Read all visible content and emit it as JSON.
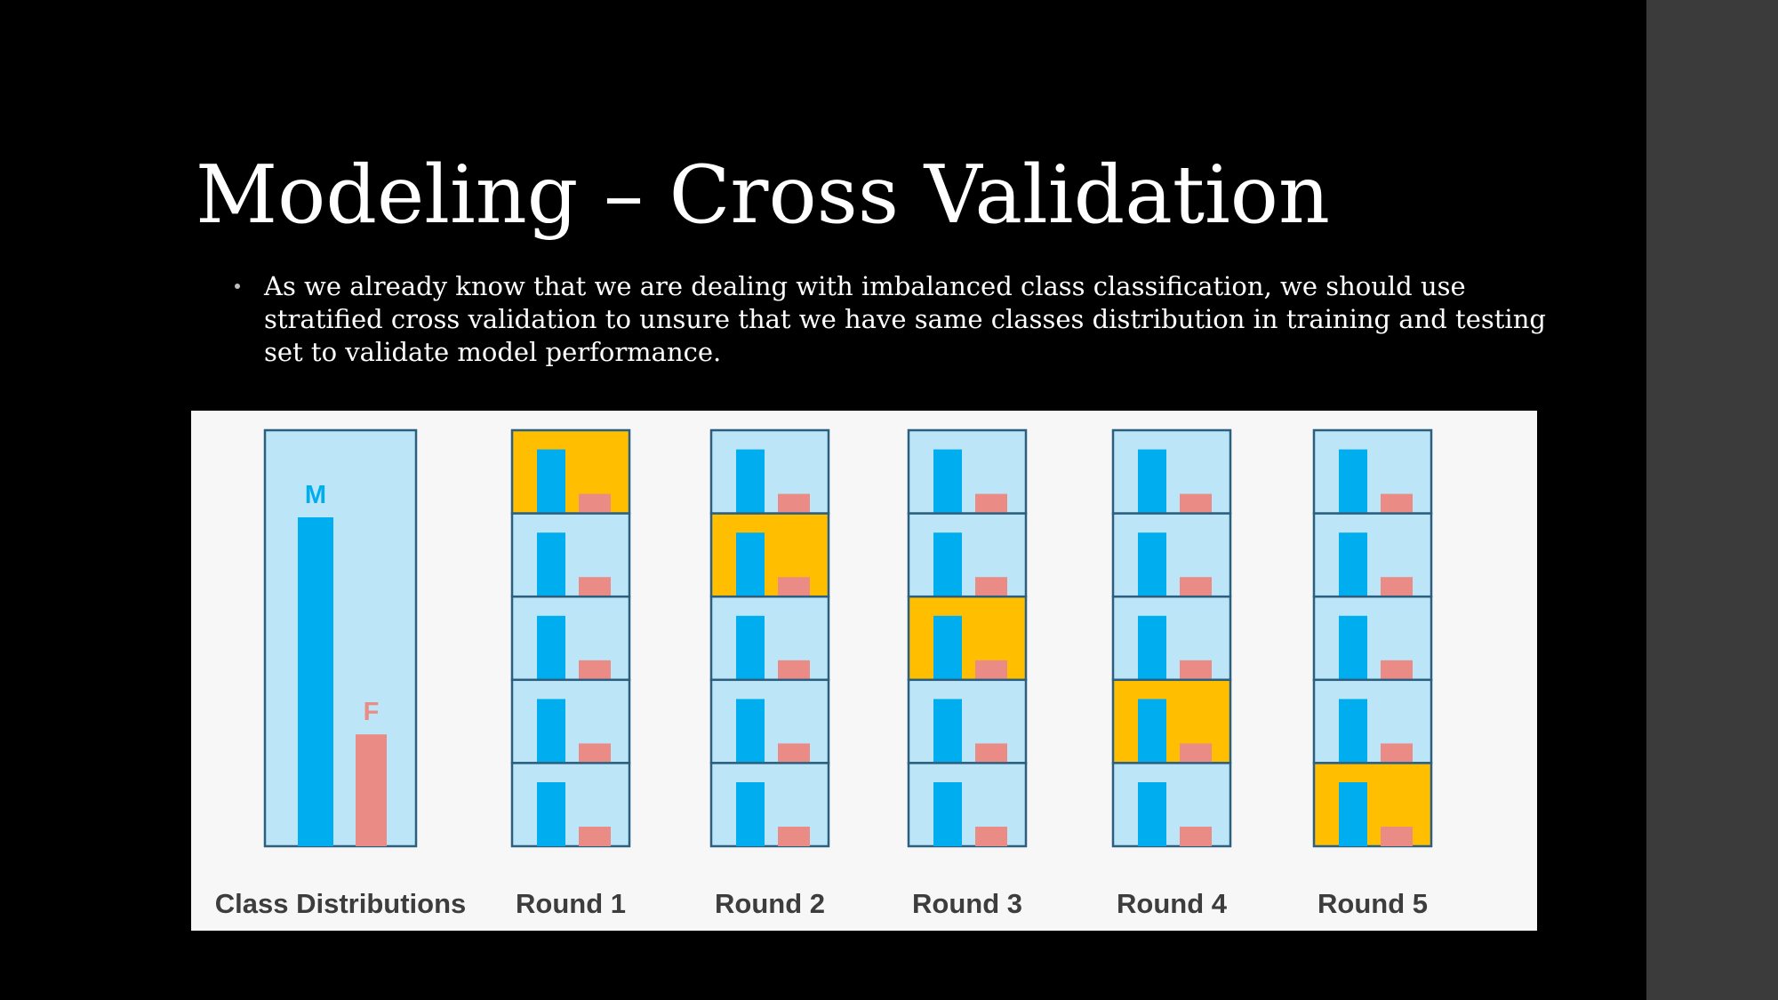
{
  "slide": {
    "title": "Modeling – Cross Validation",
    "bullet": "As we already know that we are dealing with imbalanced class classification, we should use stratified cross validation to unsure that we have same classes distribution in training and testing set to validate model performance."
  },
  "figure": {
    "class_distribution": {
      "caption": "Class Distributions",
      "classes": [
        {
          "label": "M",
          "relative_size": 1.0,
          "color": "#00aeef"
        },
        {
          "label": "F",
          "relative_size": 0.34,
          "color": "#ea8b86"
        }
      ]
    },
    "rounds": [
      {
        "caption": "Round 1",
        "test_fold": 1
      },
      {
        "caption": "Round 2",
        "test_fold": 2
      },
      {
        "caption": "Round 3",
        "test_fold": 3
      },
      {
        "caption": "Round 4",
        "test_fold": 4
      },
      {
        "caption": "Round 5",
        "test_fold": 5
      }
    ],
    "folds_per_round": 5,
    "colors": {
      "background": "#f7f7f7",
      "fold_fill": "#bce6f8",
      "test_fold_fill": "#ffbf00",
      "border": "#2c5f7f",
      "majority_bar": "#00aeef",
      "minority_bar": "#ea8b86",
      "caption_text": "#3d3d3d"
    }
  }
}
